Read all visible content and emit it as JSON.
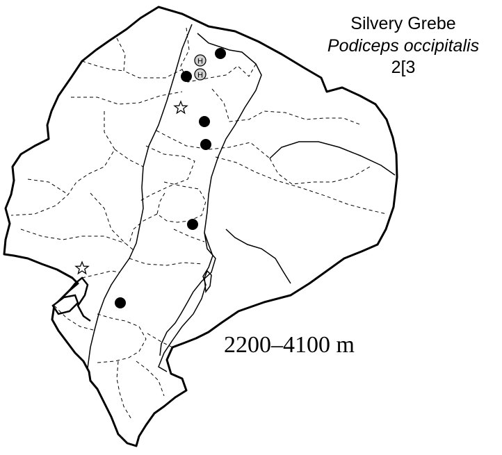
{
  "species": {
    "common_name": "Silvery Grebe",
    "scientific_name": "Podiceps occipitalis",
    "map_code": "2[3"
  },
  "elevation_range": "2200–4100 m",
  "legend_marker_letter": "H",
  "colors": {
    "ink": "#000000",
    "historical_fill": "#d0d0d0",
    "background": "#ffffff"
  },
  "marker_kinds": [
    "record-dot",
    "historical-record",
    "star-record"
  ]
}
